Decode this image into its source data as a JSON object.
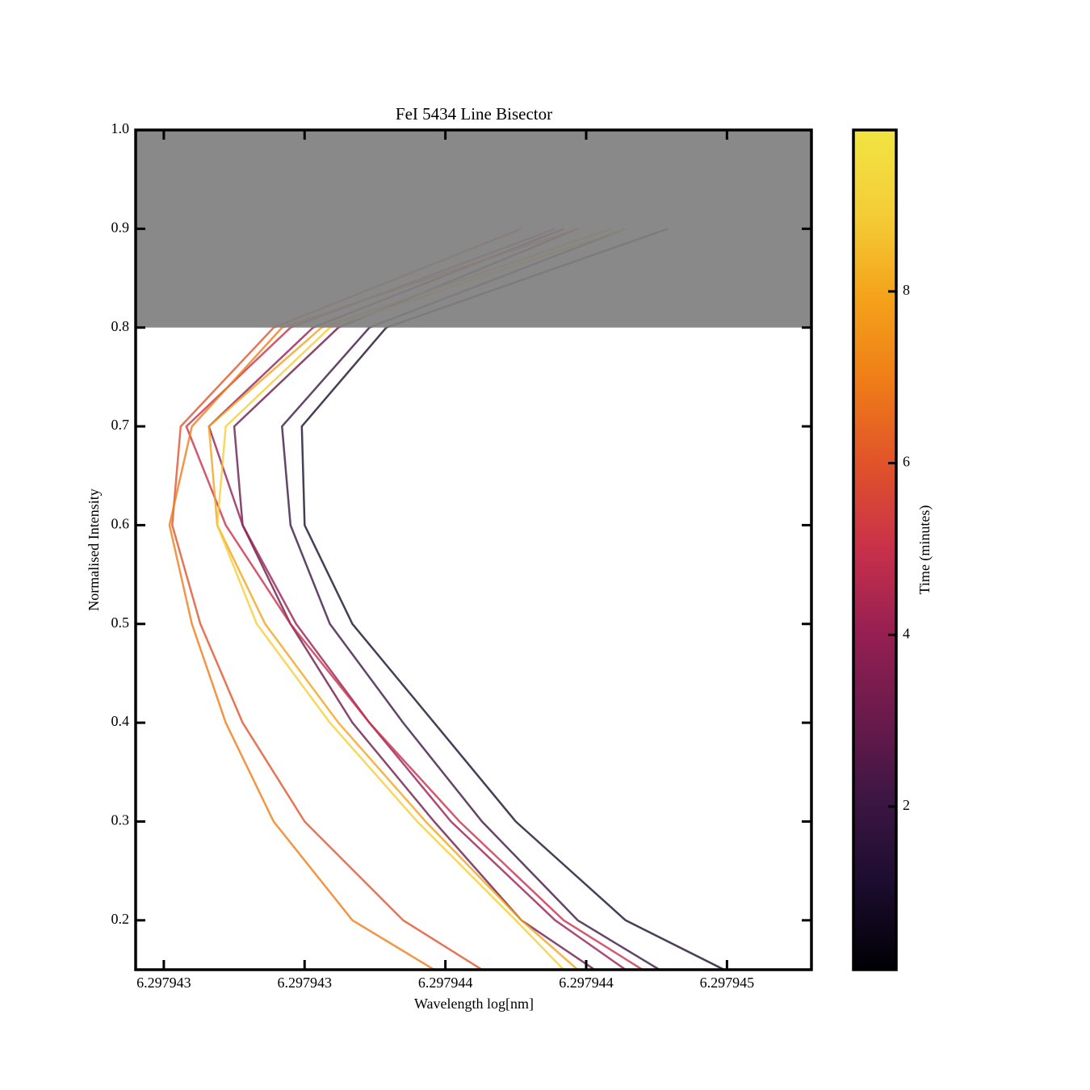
{
  "chart_data": {
    "type": "line",
    "title": "FeI 5434 Line Bisector",
    "x_label": "Wavelength log[nm]",
    "y_label": "Normalised Intensity",
    "xlim": [
      6.2979427,
      6.2979451
    ],
    "xticks": [
      {
        "value": 6.2979428,
        "label": "6.297943"
      },
      {
        "value": 6.2979433,
        "label": "6.297943"
      },
      {
        "value": 6.2979438,
        "label": "6.297944"
      },
      {
        "value": 6.2979443,
        "label": "6.297944"
      },
      {
        "value": 6.2979448,
        "label": "6.297945"
      }
    ],
    "ylim": [
      0.15,
      1.0
    ],
    "yticks": [
      0.2,
      0.3,
      0.4,
      0.5,
      0.6,
      0.7,
      0.8,
      0.9,
      {
        "value": 1.0,
        "label": "1.0"
      }
    ],
    "shade": {
      "ylim": [
        0.8,
        1.0
      ],
      "color": "#808080"
    },
    "series": [
      {
        "color": "#1b0c2e",
        "x": [
          6.29794479,
          6.29794444,
          6.29794405,
          6.29794376,
          6.29794347,
          6.2979433,
          6.29794329,
          6.29794359,
          6.29794459
        ],
        "values": [
          0.15,
          0.2,
          0.3,
          0.4,
          0.5,
          0.6,
          0.7,
          0.8,
          0.9
        ]
      },
      {
        "color": "#3b1642",
        "x": [
          6.29794456,
          6.29794427,
          6.29794393,
          6.29794365,
          6.29794339,
          6.29794325,
          6.29794322,
          6.29794353,
          6.29794444
        ],
        "values": [
          0.15,
          0.2,
          0.3,
          0.4,
          0.5,
          0.6,
          0.7,
          0.8,
          0.9
        ]
      },
      {
        "color": "#6a1a4c",
        "x": [
          6.29794433,
          6.29794407,
          6.29794376,
          6.29794347,
          6.29794325,
          6.29794308,
          6.29794305,
          6.29794342,
          6.29794427
        ],
        "values": [
          0.15,
          0.2,
          0.3,
          0.4,
          0.5,
          0.6,
          0.7,
          0.8,
          0.9
        ]
      },
      {
        "color": "#961f52",
        "x": [
          6.29794444,
          6.29794419,
          6.29794382,
          6.29794353,
          6.29794327,
          6.29794308,
          6.29794296,
          6.29794333,
          6.29794422
        ],
        "values": [
          0.15,
          0.2,
          0.3,
          0.4,
          0.5,
          0.6,
          0.7,
          0.8,
          0.9
        ]
      },
      {
        "color": "#c8304a",
        "x": [
          6.2979445,
          6.29794422,
          6.29794385,
          6.29794353,
          6.29794325,
          6.29794302,
          6.29794288,
          6.29794325,
          6.29794419
        ],
        "values": [
          0.15,
          0.2,
          0.3,
          0.4,
          0.5,
          0.6,
          0.7,
          0.8,
          0.9
        ]
      },
      {
        "color": "#e0522a",
        "x": [
          6.29794393,
          6.29794365,
          6.2979433,
          6.29794308,
          6.29794293,
          6.29794283,
          6.29794286,
          6.29794319,
          6.29794407
        ],
        "values": [
          0.15,
          0.2,
          0.3,
          0.4,
          0.5,
          0.6,
          0.7,
          0.8,
          0.9
        ]
      },
      {
        "color": "#ef7c18",
        "x": [
          6.29794376,
          6.29794347,
          6.29794319,
          6.29794302,
          6.2979429,
          6.29794282,
          6.2979429,
          6.29794322,
          6.29794427
        ],
        "values": [
          0.15,
          0.2,
          0.3,
          0.4,
          0.5,
          0.6,
          0.7,
          0.8,
          0.9
        ]
      },
      {
        "color": "#f4a21a",
        "x": [
          6.29794427,
          6.29794407,
          6.29794373,
          6.29794342,
          6.29794316,
          6.29794299,
          6.29794296,
          6.29794336,
          6.29794439
        ],
        "values": [
          0.15,
          0.2,
          0.3,
          0.4,
          0.5,
          0.6,
          0.7,
          0.8,
          0.9
        ]
      },
      {
        "color": "#f4cd37",
        "x": [
          6.29794422,
          6.29794405,
          6.2979437,
          6.29794339,
          6.29794313,
          6.29794299,
          6.29794302,
          6.29794339,
          6.29794444
        ],
        "values": [
          0.15,
          0.2,
          0.3,
          0.4,
          0.5,
          0.6,
          0.7,
          0.8,
          0.9
        ]
      }
    ],
    "colorbar": {
      "label": "Time (minutes)",
      "lim": [
        0.1,
        9.88
      ],
      "ticks": [
        2,
        4,
        6,
        8
      ],
      "colors": [
        "#000004",
        "#1b0c2e",
        "#3b1642",
        "#6a1a4c",
        "#961f52",
        "#c8304a",
        "#e0522a",
        "#ef7c18",
        "#f4a21a",
        "#f4cd37",
        "#f2e441"
      ]
    }
  }
}
